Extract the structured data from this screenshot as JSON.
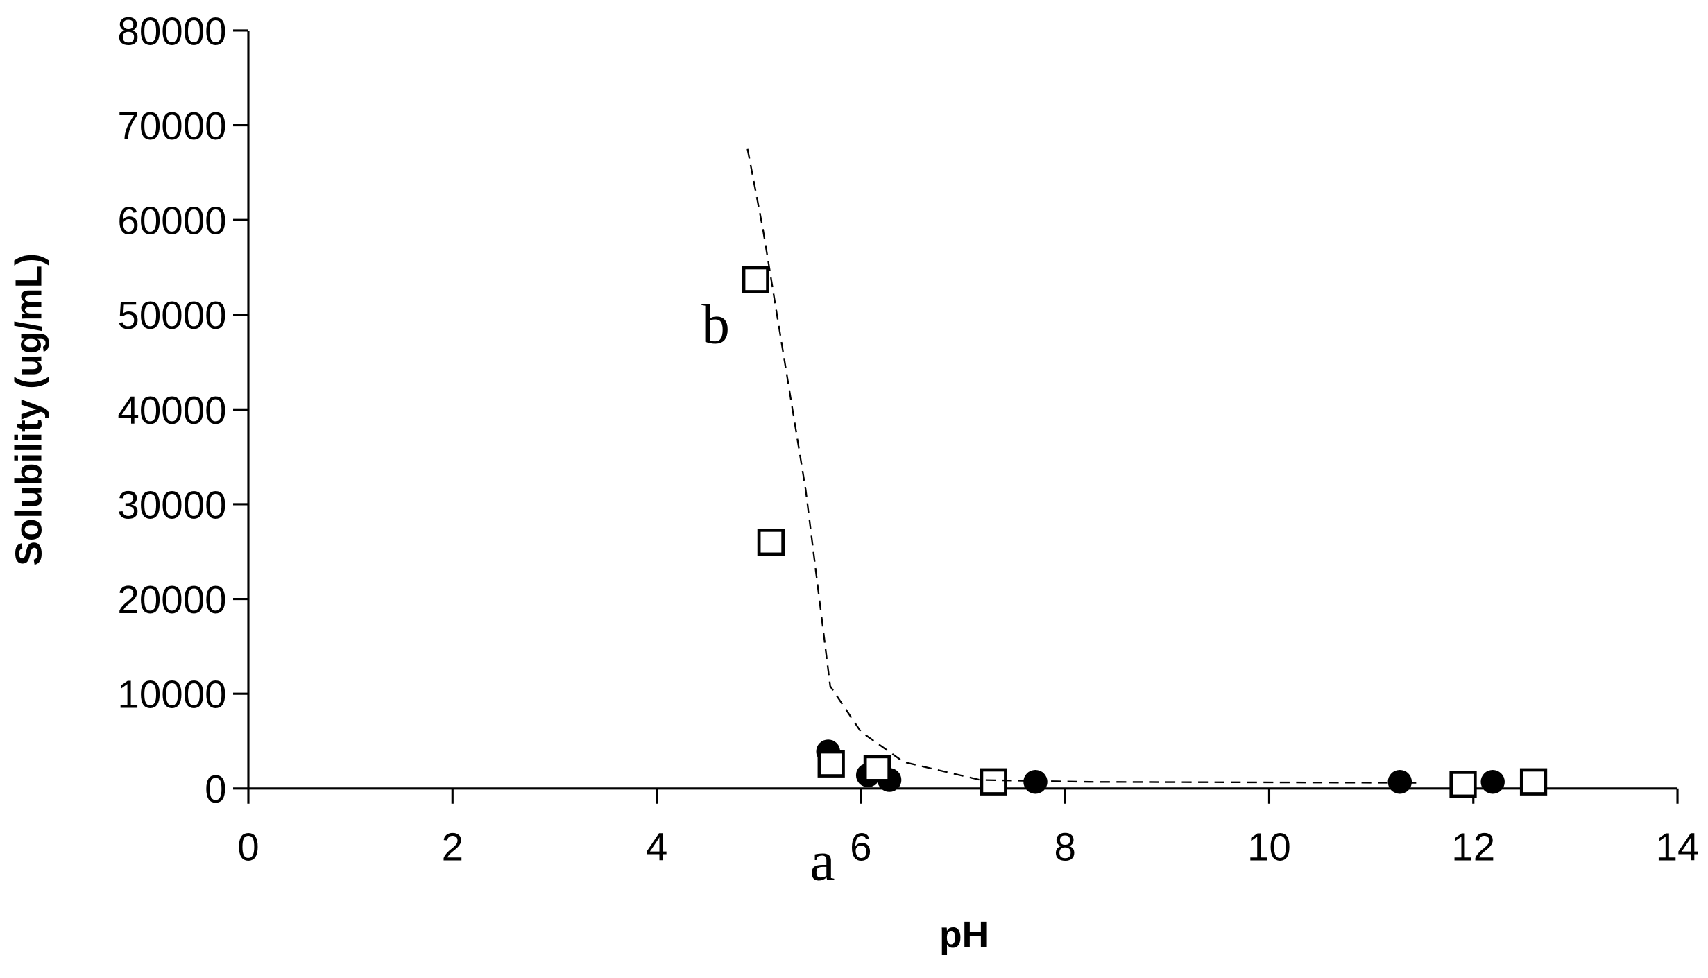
{
  "chart_data": {
    "type": "scatter",
    "x_label": "pH",
    "y_label": "Solubility (ug/mL)",
    "xlim": [
      0,
      14
    ],
    "xticks": [
      0,
      2,
      4,
      6,
      8,
      10,
      12,
      14
    ],
    "ylim": [
      0,
      80000
    ],
    "yticks": [
      0,
      10000,
      20000,
      30000,
      40000,
      50000,
      60000,
      70000,
      80000
    ],
    "grid": false,
    "annotations": [
      "a",
      "b"
    ],
    "series": [
      {
        "marker": "circle",
        "color": "#000000",
        "x": [
          5.68,
          6.07,
          6.28,
          7.71,
          11.28,
          12.19
        ],
        "values": [
          3900,
          1400,
          900,
          700,
          700,
          700
        ]
      },
      {
        "marker": "square",
        "color": "#000000",
        "x": [
          4.97,
          5.12,
          5.71,
          6.16,
          7.3,
          11.9,
          12.59
        ],
        "values": [
          53700,
          26000,
          2600,
          2100,
          700,
          450,
          700
        ]
      },
      {
        "marker": "none",
        "line": "dashed",
        "color": "#000000",
        "x": [
          4.89,
          5.04,
          5.25,
          5.46,
          5.7,
          6.0,
          6.42,
          7.17,
          8.24,
          11.44
        ],
        "values": [
          67500,
          59100,
          45300,
          31500,
          10800,
          6000,
          2800,
          900,
          700,
          600
        ]
      }
    ]
  }
}
